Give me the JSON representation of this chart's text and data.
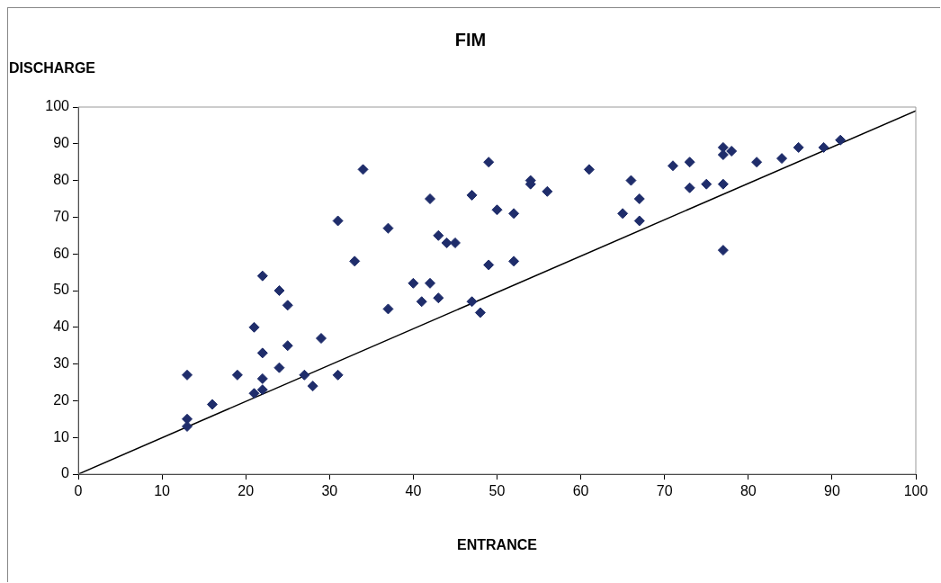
{
  "chart_data": {
    "type": "scatter",
    "title": "FIM",
    "xlabel": "ENTRANCE",
    "ylabel": "DISCHARGE",
    "xlim": [
      0,
      100
    ],
    "xticks": [
      0,
      10,
      20,
      30,
      40,
      50,
      60,
      70,
      80,
      90,
      100
    ],
    "ylim": [
      0,
      100
    ],
    "yticks": [
      0,
      10,
      20,
      30,
      40,
      50,
      60,
      70,
      80,
      90,
      100
    ],
    "marker": "diamond",
    "series": [
      {
        "color": "#1f2d6b",
        "x": [
          13,
          13,
          13,
          16,
          19,
          21,
          21,
          22,
          22,
          22,
          22,
          24,
          24,
          25,
          25,
          27,
          28,
          29,
          31,
          31,
          33,
          34,
          37,
          37,
          40,
          41,
          42,
          42,
          43,
          43,
          44,
          45,
          47,
          47,
          48,
          49,
          49,
          50,
          52,
          52,
          54,
          54,
          56,
          61,
          65,
          66,
          67,
          67,
          71,
          73,
          73,
          75,
          77,
          77,
          77,
          77,
          78,
          81,
          84,
          86,
          89,
          91
        ],
        "values": [
          27,
          15,
          13,
          19,
          27,
          40,
          22,
          54,
          33,
          26,
          23,
          50,
          29,
          46,
          35,
          27,
          24,
          37,
          69,
          27,
          58,
          83,
          67,
          45,
          52,
          47,
          75,
          52,
          65,
          48,
          63,
          63,
          76,
          47,
          44,
          85,
          57,
          72,
          71,
          58,
          80,
          79,
          77,
          83,
          71,
          80,
          75,
          69,
          84,
          85,
          78,
          79,
          89,
          87,
          79,
          61,
          88,
          85,
          86,
          89,
          89,
          91
        ]
      },
      {
        "type": "line",
        "color": "#000000",
        "marker": "none",
        "x": [
          0,
          100
        ],
        "values": [
          0,
          99
        ]
      }
    ]
  }
}
